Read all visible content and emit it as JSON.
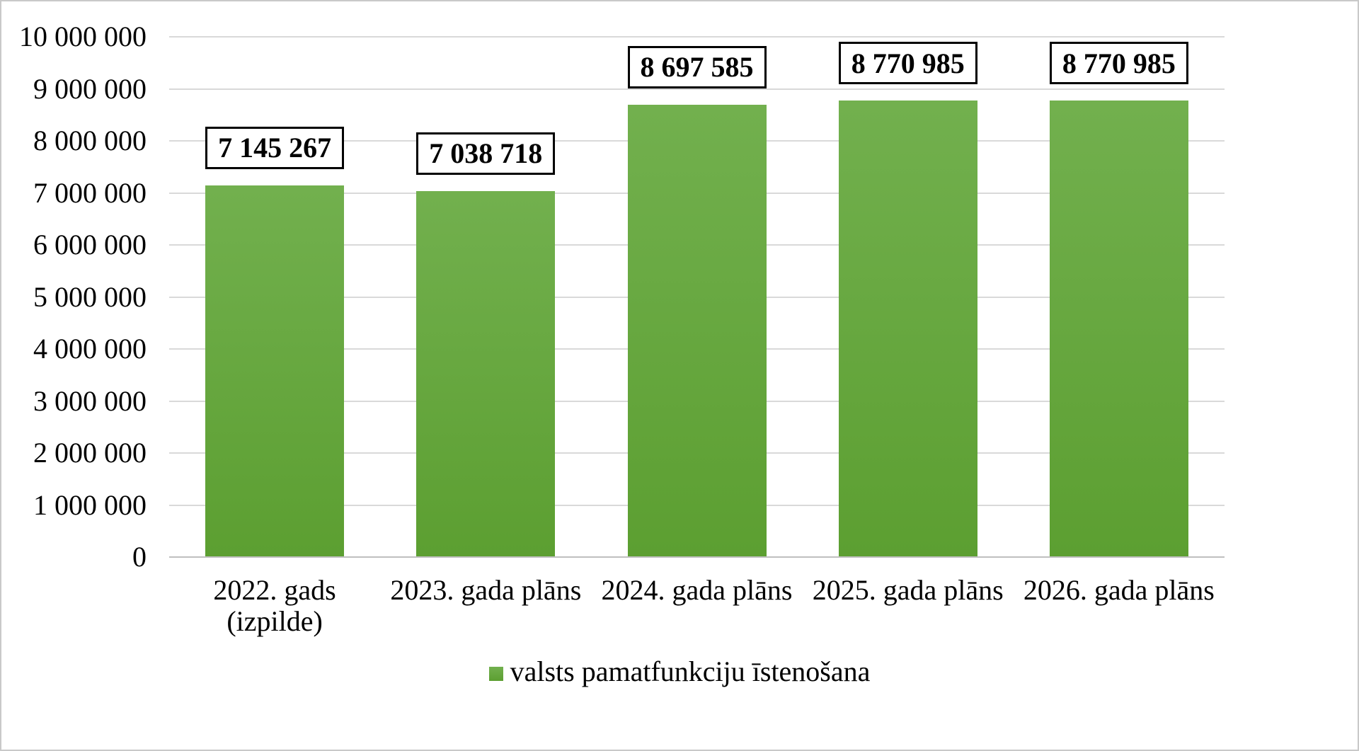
{
  "chart_data": {
    "type": "bar",
    "title": "",
    "legend": "valsts pamatfunkciju īstenošana",
    "legend_position": "bottom",
    "grid": true,
    "categories": [
      "2022. gads (izpilde)",
      "2023. gada plāns",
      "2024. gada plāns",
      "2025. gada plāns",
      "2026. gada plāns"
    ],
    "category_label_lines": [
      [
        "2022. gads",
        "(izpilde)"
      ],
      [
        "2023. gada plāns"
      ],
      [
        "2024. gada plāns"
      ],
      [
        "2025. gada plāns"
      ],
      [
        "2026. gada plāns"
      ]
    ],
    "series": [
      {
        "name": "valsts pamatfunkciju īstenošana",
        "values": [
          7145267,
          7038718,
          8697585,
          8770985,
          8770985
        ]
      }
    ],
    "data_labels": [
      "7 145 267",
      "7 038 718",
      "8 697 585",
      "8 770 985",
      "8 770 985"
    ],
    "xlabel": "",
    "ylabel": "",
    "ylim": [
      0,
      10000000
    ],
    "ytick_interval": 1000000,
    "ytick_labels": [
      "0",
      "1 000 000",
      "2 000 000",
      "3 000 000",
      "4 000 000",
      "5 000 000",
      "6 000 000",
      "7 000 000",
      "8 000 000",
      "9 000 000",
      "10 000 000"
    ],
    "colors": {
      "bar_top": "#72B04E",
      "bar_bottom": "#5C9F31",
      "gridline": "#D9D9D9",
      "axis_line": "#BFBFBF",
      "label_box_border": "#000000",
      "label_box_bg": "#FFFFFF",
      "text": "#000000",
      "frame_border": "#C9C9C9",
      "background": "#FFFFFF"
    }
  }
}
